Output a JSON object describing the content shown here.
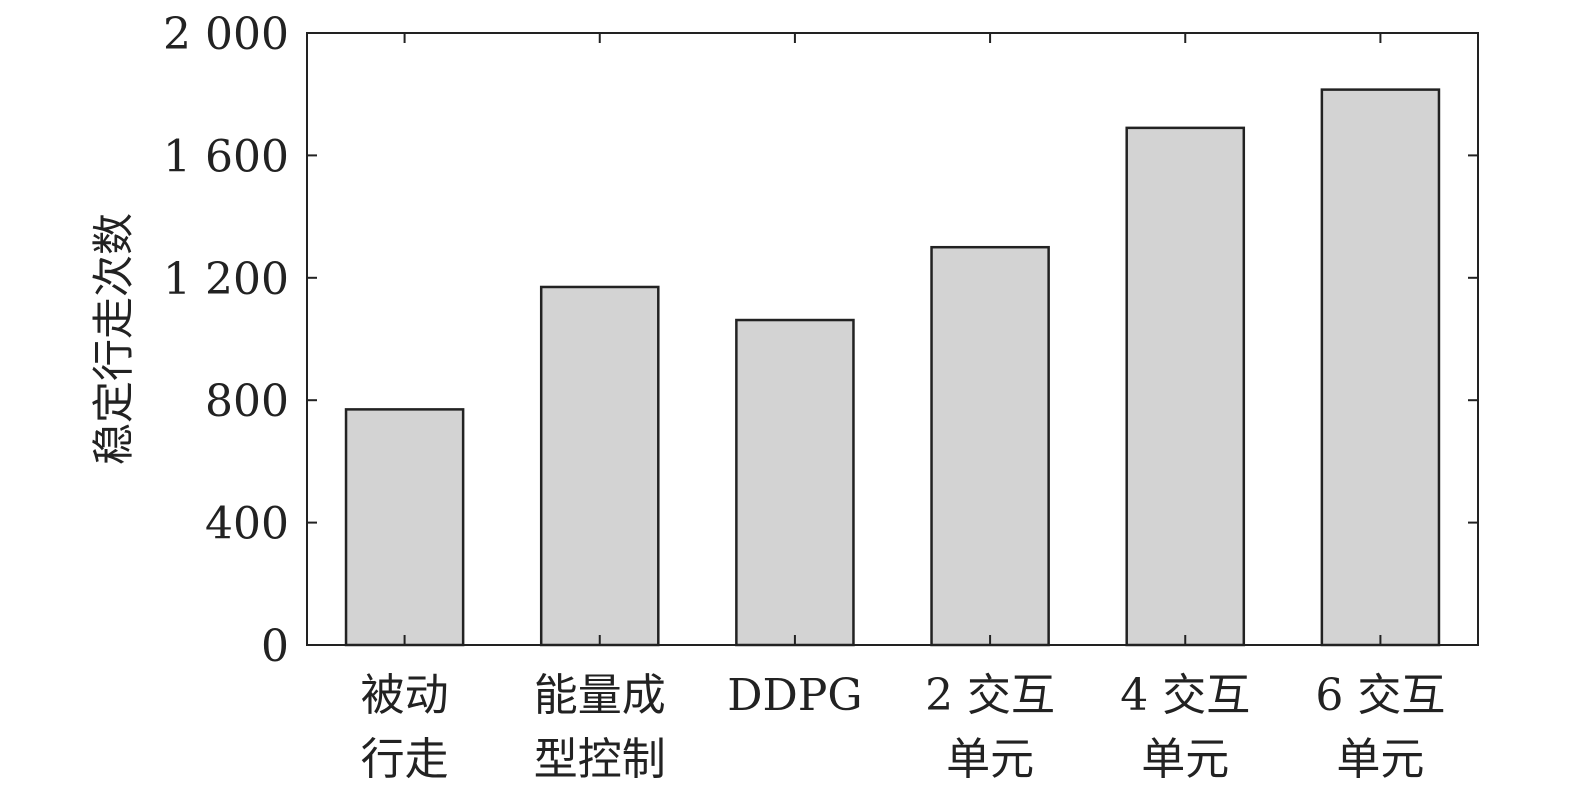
{
  "chart_data": {
    "type": "bar",
    "title": "",
    "xlabel": "",
    "ylabel": "稳定行走次数",
    "categories": [
      [
        "被动",
        "行走"
      ],
      [
        "能量成",
        "型控制"
      ],
      [
        "DDPG"
      ],
      [
        "2 交互",
        "单元"
      ],
      [
        "4 交互",
        "单元"
      ],
      [
        "6 交互",
        "单元"
      ]
    ],
    "values": [
      770,
      1170,
      1062,
      1300,
      1690,
      1815
    ],
    "ylim": [
      0,
      2000
    ],
    "yticks": [
      0,
      400,
      800,
      1200,
      1600,
      2000
    ],
    "ytick_labels": [
      "0",
      "400",
      "800",
      "1 200",
      "1 600",
      "2 000"
    ],
    "grid": false,
    "legend": "none",
    "colors": {
      "bar_fill": "#d3d3d3",
      "bar_stroke": "#222222",
      "axis": "#222222"
    }
  }
}
